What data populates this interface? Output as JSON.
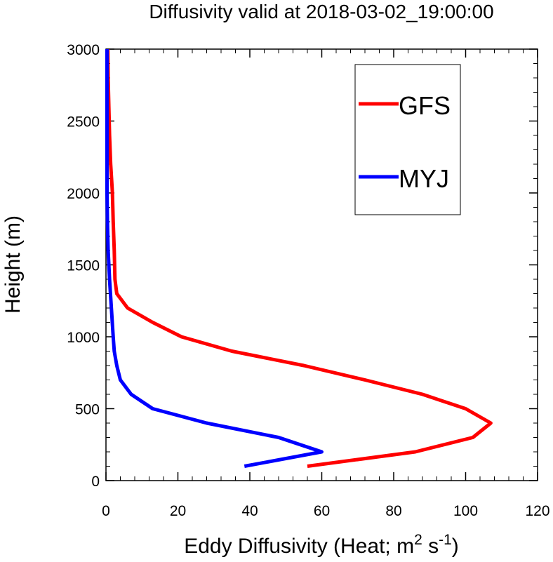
{
  "chart_data": {
    "type": "line",
    "title": "Diffusivity valid at 2018-03-02_19:00:00",
    "xlabel": {
      "prefix": "Eddy Diffusivity (Heat; m",
      "sup1": "2",
      "middle": " s",
      "sup2": "-1",
      "suffix": ")"
    },
    "ylabel": "Height (m)",
    "xlim": [
      0,
      120
    ],
    "ylim": [
      0,
      3000
    ],
    "xticks": [
      0,
      20,
      40,
      60,
      80,
      100,
      120
    ],
    "yticks": [
      0,
      500,
      1000,
      1500,
      2000,
      2500,
      3000
    ],
    "grid": false,
    "legend_position": "top-right",
    "series": [
      {
        "name": "GFS",
        "color": "#ff0000",
        "points": [
          [
            56,
            100
          ],
          [
            86,
            200
          ],
          [
            102,
            300
          ],
          [
            107,
            400
          ],
          [
            100,
            500
          ],
          [
            88,
            600
          ],
          [
            72,
            700
          ],
          [
            55,
            800
          ],
          [
            35,
            900
          ],
          [
            21,
            1000
          ],
          [
            13,
            1100
          ],
          [
            6,
            1200
          ],
          [
            3,
            1300
          ],
          [
            2.5,
            1400
          ],
          [
            2.3,
            1600
          ],
          [
            2,
            1800
          ],
          [
            1.8,
            2000
          ],
          [
            1.3,
            2200
          ],
          [
            1,
            2400
          ],
          [
            0.8,
            2600
          ],
          [
            0.6,
            2800
          ],
          [
            0.5,
            3000
          ]
        ]
      },
      {
        "name": "MYJ",
        "color": "#0000ff",
        "points": [
          [
            38.5,
            100
          ],
          [
            60,
            200
          ],
          [
            48,
            300
          ],
          [
            28,
            400
          ],
          [
            13,
            500
          ],
          [
            7,
            600
          ],
          [
            4,
            700
          ],
          [
            3,
            800
          ],
          [
            2.3,
            900
          ],
          [
            2,
            1000
          ],
          [
            1.5,
            1200
          ],
          [
            1,
            1400
          ],
          [
            0.6,
            1600
          ],
          [
            0.4,
            1800
          ],
          [
            0.3,
            2000
          ],
          [
            0.3,
            2500
          ],
          [
            0.3,
            3000
          ]
        ]
      }
    ]
  }
}
